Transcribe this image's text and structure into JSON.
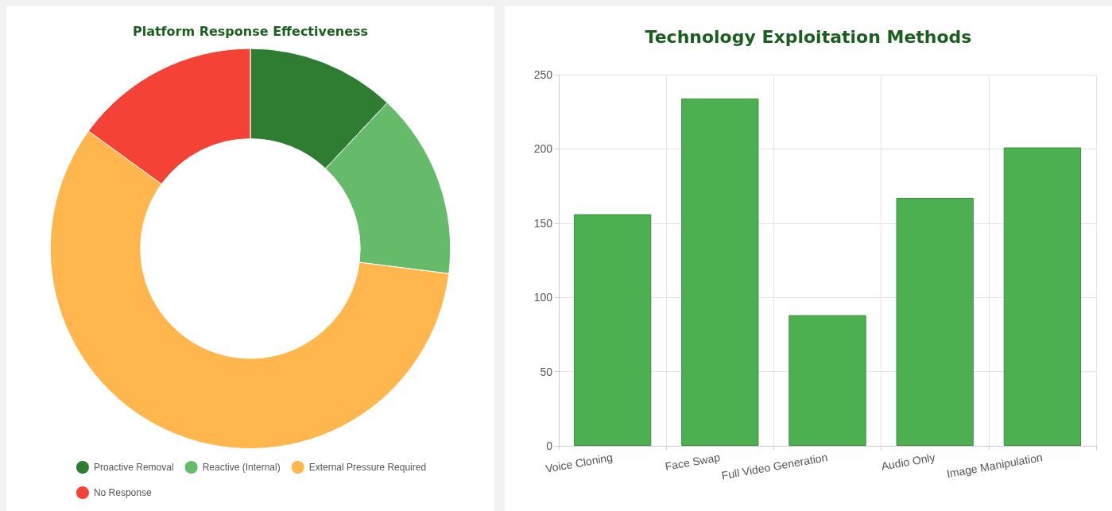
{
  "chart_data": [
    {
      "type": "donut",
      "title": "Platform Response Effectiveness",
      "categories": [
        "Proactive Removal",
        "Reactive (Internal)",
        "External Pressure Required",
        "No Response"
      ],
      "values": [
        12,
        15,
        58,
        15
      ],
      "colors": [
        "#2e7d32",
        "#66bb6a",
        "#ffb74d",
        "#f44336"
      ],
      "legend": "bottom"
    },
    {
      "type": "bar",
      "title": "Technology Exploitation Methods",
      "categories": [
        "Voice Cloning",
        "Face Swap",
        "Full Video Generation",
        "Audio Only",
        "Image Manipulation"
      ],
      "values": [
        156,
        234,
        88,
        167,
        201
      ],
      "color": "#4caf50",
      "ylim": [
        0,
        250
      ],
      "yticks": [
        0,
        50,
        100,
        150,
        200,
        250
      ],
      "grid": true
    }
  ]
}
